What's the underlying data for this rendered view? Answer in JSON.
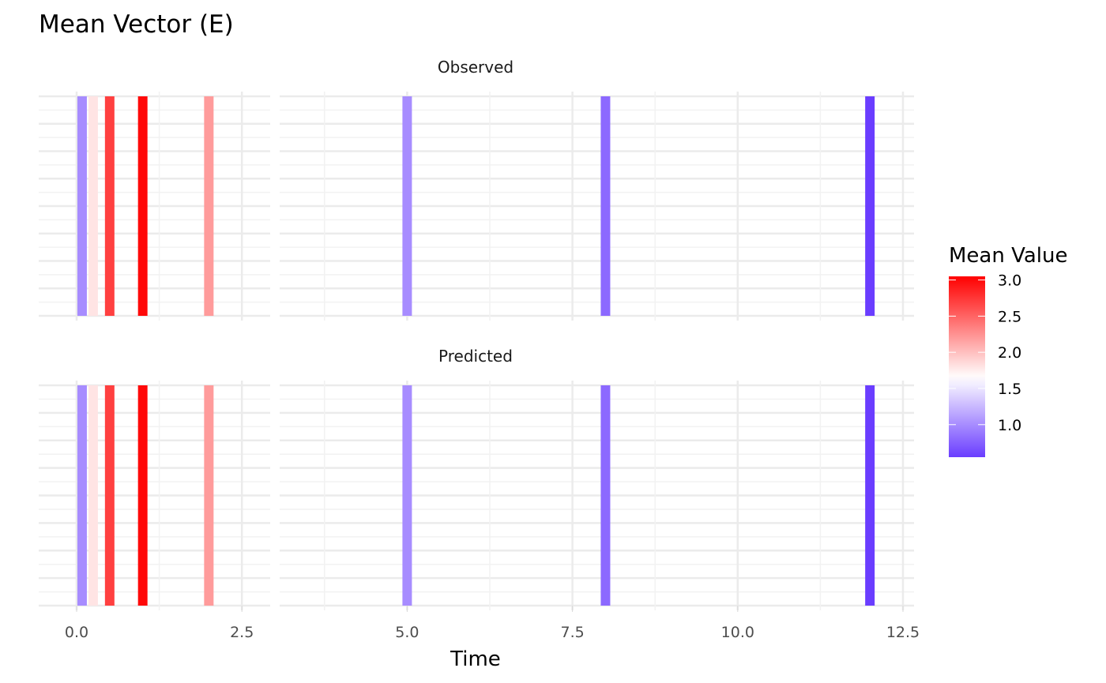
{
  "chart_data": {
    "type": "heatmap",
    "title": "Mean Vector (E)",
    "xlabel": "Time",
    "ylabel": "",
    "xlim": [
      -0.55,
      12.65
    ],
    "x_ticks": [
      0.0,
      2.5,
      5.0,
      7.5,
      10.0,
      12.5
    ],
    "x_tick_labels": [
      "0.0",
      "2.5",
      "5.0",
      "7.5",
      "10.0",
      "12.5"
    ],
    "grid": true,
    "panels": [
      {
        "name": "Observed",
        "points": [
          {
            "time": 0.083,
            "value": 1.0
          },
          {
            "time": 0.25,
            "value": 1.8
          },
          {
            "time": 0.5,
            "value": 2.7
          },
          {
            "time": 1.0,
            "value": 3.0
          },
          {
            "time": 2.0,
            "value": 2.2
          },
          {
            "time": 5.0,
            "value": 1.0
          },
          {
            "time": 8.0,
            "value": 0.8
          },
          {
            "time": 12.0,
            "value": 0.55
          }
        ]
      },
      {
        "name": "Predicted",
        "points": [
          {
            "time": 0.083,
            "value": 1.0
          },
          {
            "time": 0.25,
            "value": 1.8
          },
          {
            "time": 0.5,
            "value": 2.7
          },
          {
            "time": 1.0,
            "value": 3.0
          },
          {
            "time": 2.0,
            "value": 2.2
          },
          {
            "time": 5.0,
            "value": 1.0
          },
          {
            "time": 8.0,
            "value": 0.8
          },
          {
            "time": 12.0,
            "value": 0.55
          }
        ]
      }
    ],
    "legend": {
      "title": "Mean Value",
      "position": "right",
      "range": [
        0.55,
        3.05
      ],
      "midpoint": 1.65,
      "ticks": [
        1.0,
        1.5,
        2.0,
        2.5,
        3.0
      ],
      "tick_labels": [
        "1.0",
        "1.5",
        "2.0",
        "2.5",
        "3.0"
      ],
      "low_color": "#6a3dff",
      "mid_color": "#ffffff",
      "high_color": "#ff0000"
    }
  }
}
